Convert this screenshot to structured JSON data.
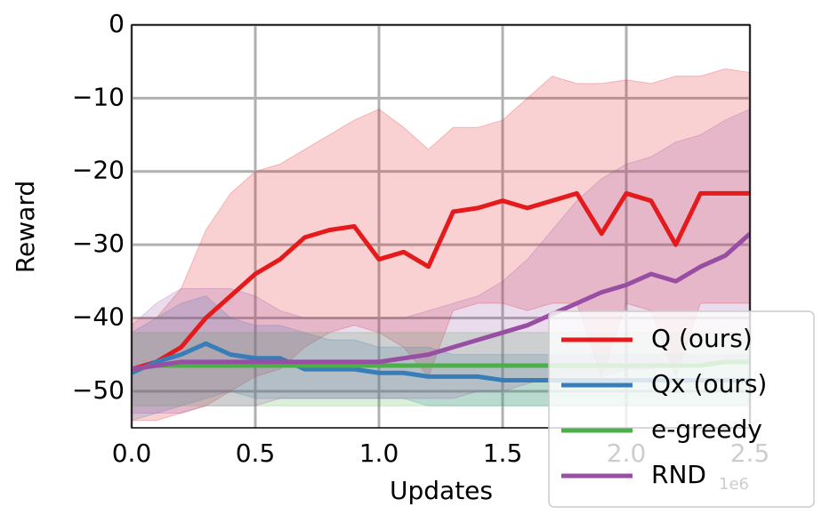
{
  "chart_data": {
    "type": "line",
    "x_label": "Updates",
    "y_label": "Reward",
    "x_offset_label": "1e6",
    "x": [
      0,
      0.1,
      0.2,
      0.3,
      0.4,
      0.5,
      0.6,
      0.7,
      0.8,
      0.9,
      1.0,
      1.1,
      1.2,
      1.3,
      1.4,
      1.5,
      1.6,
      1.7,
      1.8,
      1.9,
      2.0,
      2.1,
      2.2,
      2.3,
      2.4,
      2.5
    ],
    "xlim": [
      0,
      2.5
    ],
    "ylim": [
      -55,
      0
    ],
    "xticks": [
      {
        "value": 0,
        "label": "0.0"
      },
      {
        "value": 0.5,
        "label": "0.5"
      },
      {
        "value": 1,
        "label": "1.0"
      },
      {
        "value": 1.5,
        "label": "1.5"
      },
      {
        "value": 2,
        "label": "2.0"
      },
      {
        "value": 2.5,
        "label": "2.5"
      }
    ],
    "yticks": [
      {
        "value": -50,
        "label": "−50"
      },
      {
        "value": -40,
        "label": "−40"
      },
      {
        "value": -30,
        "label": "−30"
      },
      {
        "value": -20,
        "label": "−20"
      },
      {
        "value": -10,
        "label": "−10"
      },
      0
    ],
    "grid": true,
    "legend": "lower right",
    "series": [
      {
        "name": "Q (ours)",
        "color": "#e41a1c",
        "values": [
          -47,
          -46,
          -44,
          -40,
          -37,
          -34,
          -32,
          -29,
          -28,
          -27.5,
          -32,
          -31,
          -33,
          -25.5,
          -25,
          -24,
          -25,
          -24,
          -23,
          -28.5,
          -23,
          -24,
          -30,
          -23,
          -23,
          -23
        ],
        "upper": [
          -40,
          -40,
          -36,
          -28,
          -23,
          -20,
          -19,
          -17,
          -15,
          -13,
          -11.5,
          -14,
          -17,
          -14,
          -14,
          -13,
          -10,
          -7,
          -8,
          -8,
          -7.5,
          -8,
          -7,
          -7,
          -6,
          -6.5
        ],
        "lower": [
          -54,
          -54,
          -53,
          -52,
          -50,
          -48,
          -47,
          -44,
          -42,
          -41,
          -42,
          -44,
          -48,
          -39,
          -38,
          -38,
          -39,
          -38,
          -38,
          -48,
          -38,
          -39,
          -48,
          -38,
          -38,
          -38
        ]
      },
      {
        "name": "Qx (ours)",
        "color": "#377eb8",
        "values": [
          -47.5,
          -46,
          -45,
          -43.5,
          -45,
          -45.5,
          -45.5,
          -47,
          -47,
          -47,
          -47.5,
          -47.5,
          -48,
          -48,
          -48,
          -48.5,
          -48.5,
          -48.5,
          -48.5,
          -48.5,
          -48.5,
          -48.5,
          -48.5,
          -48.5,
          -48.5,
          -48.5
        ],
        "upper": [
          -42,
          -40,
          -38,
          -37,
          -40,
          -41,
          -41,
          -42,
          -43,
          -43,
          -44,
          -44,
          -44,
          -45,
          -45,
          -45,
          -45,
          -45,
          -45,
          -45,
          -45,
          -45,
          -45,
          -45,
          -45,
          -45
        ],
        "lower": [
          -54,
          -53,
          -52,
          -51,
          -50,
          -51,
          -51,
          -51,
          -51,
          -51,
          -51,
          -51,
          -52,
          -52,
          -52,
          -52,
          -52,
          -52,
          -52,
          -52,
          -52,
          -52,
          -52,
          -52,
          -52,
          -52
        ]
      },
      {
        "name": "e-greedy",
        "color": "#4daf4a",
        "values": [
          -47,
          -46.5,
          -46.5,
          -46.5,
          -46.5,
          -46.5,
          -46.5,
          -46.5,
          -46.5,
          -46.5,
          -46.5,
          -46.5,
          -46.5,
          -46.5,
          -46.5,
          -46.5,
          -46.5,
          -46.5,
          -46.5,
          -46.5,
          -46.5,
          -46.5,
          -46.5,
          -46.5,
          -46,
          -46
        ],
        "upper": [
          -42,
          -42,
          -42,
          -42,
          -42,
          -42,
          -42,
          -42,
          -42,
          -42,
          -42,
          -42,
          -42,
          -42,
          -42,
          -42,
          -42,
          -42,
          -42,
          -42,
          -42,
          -42,
          -42,
          -42,
          -42,
          -42
        ],
        "lower": [
          -52,
          -52,
          -52,
          -52,
          -52,
          -52,
          -52,
          -52,
          -52,
          -52,
          -52,
          -52,
          -52,
          -52,
          -52,
          -52,
          -52,
          -52,
          -52,
          -52,
          -52,
          -52,
          -52,
          -52,
          -52,
          -52
        ]
      },
      {
        "name": "RND",
        "color": "#984ea3",
        "values": [
          -47,
          -46.5,
          -46,
          -46,
          -46,
          -46,
          -46,
          -46,
          -46,
          -46,
          -46,
          -45.5,
          -45,
          -44,
          -43,
          -42,
          -41,
          -39.5,
          -38,
          -36.5,
          -35.5,
          -34,
          -35,
          -33,
          -31.5,
          -28.5
        ],
        "upper": [
          -41,
          -38,
          -36,
          -36,
          -36,
          -37,
          -39,
          -40,
          -40,
          -40,
          -40,
          -40,
          -39,
          -38,
          -37,
          -35,
          -32,
          -28,
          -24,
          -21,
          -19,
          -18,
          -16,
          -15,
          -13,
          -11.5
        ],
        "lower": [
          -53,
          -53,
          -53,
          -52,
          -52,
          -52,
          -51,
          -51,
          -51,
          -51,
          -51,
          -51,
          -51,
          -51,
          -50,
          -50,
          -49,
          -48,
          -48,
          -48,
          -47,
          -47,
          -46,
          -46,
          -46,
          -46
        ]
      }
    ]
  }
}
